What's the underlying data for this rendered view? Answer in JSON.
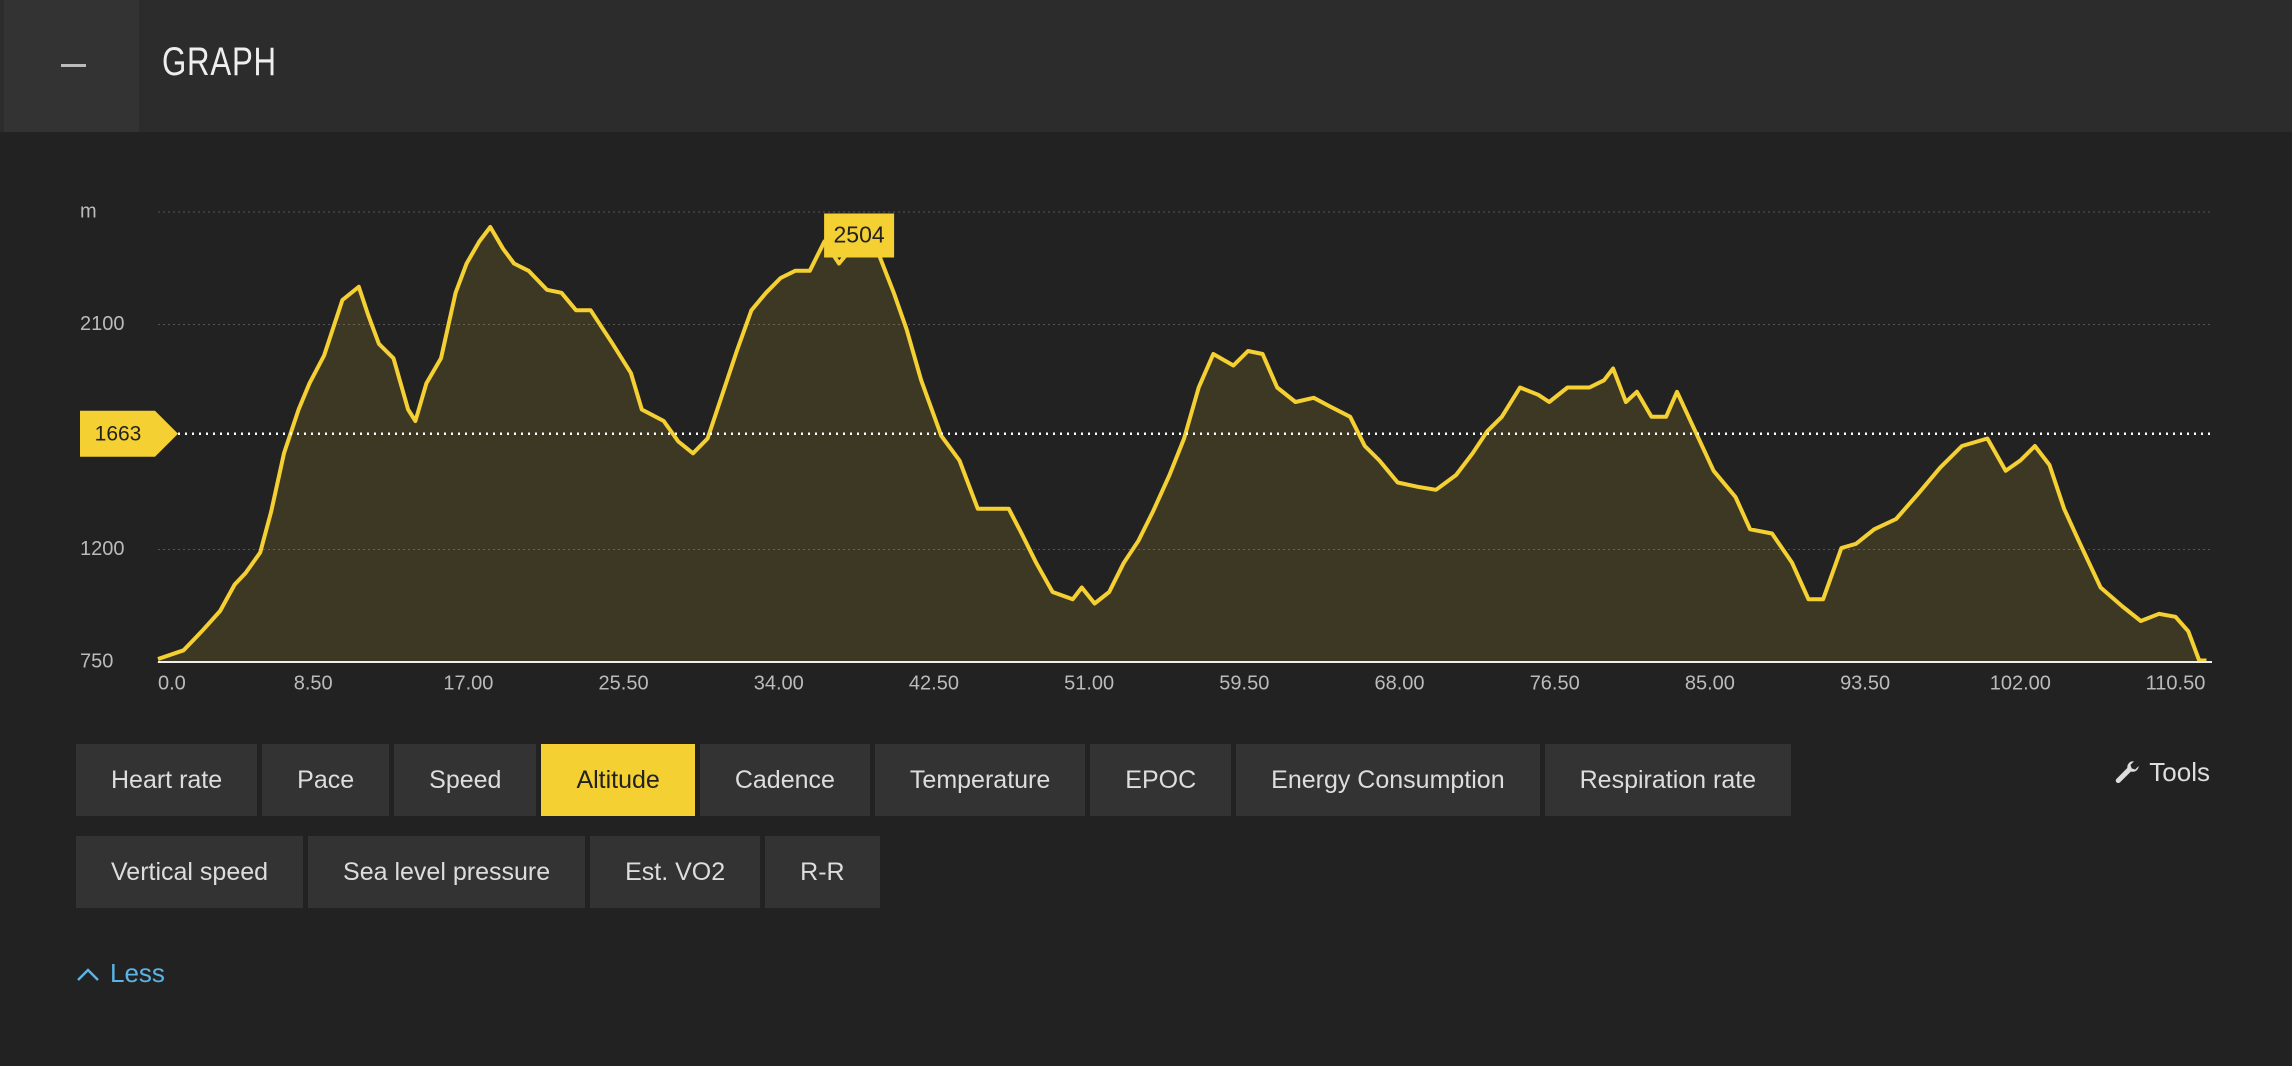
{
  "header": {
    "title": "GRAPH"
  },
  "chart_data": {
    "type": "line",
    "y_unit": "m",
    "color": "#f5d033",
    "x": [
      0,
      1.4,
      2.4,
      3.4,
      4.2,
      4.8,
      5.6,
      6.2,
      6.9,
      7.7,
      8.3,
      9.1,
      10.1,
      11.0,
      11.5,
      12.1,
      12.9,
      13.7,
      14.1,
      14.7,
      15.5,
      16.3,
      16.9,
      17.6,
      18.2,
      18.9,
      19.5,
      20.3,
      21.3,
      22.1,
      22.9,
      23.7,
      24.9,
      25.9,
      26.5,
      27.7,
      28.5,
      29.3,
      30.1,
      30.9,
      31.7,
      32.5,
      33.3,
      34.1,
      34.9,
      35.7,
      36.5,
      37.3,
      38.5,
      39.3,
      40.3,
      41.0,
      41.8,
      42.9,
      43.9,
      44.9,
      45.8,
      46.6,
      47.3,
      48.1,
      49.0,
      50.1,
      50.6,
      51.3,
      52.1,
      52.9,
      53.7,
      54.5,
      55.4,
      56.2,
      57.0,
      57.8,
      58.9,
      59.7,
      60.5,
      61.3,
      62.3,
      63.3,
      64.2,
      65.3,
      66.1,
      66.9,
      67.9,
      69.0,
      70.0,
      71.1,
      72.0,
      72.8,
      73.6,
      74.6,
      75.6,
      76.2,
      77.2,
      78.4,
      79.2,
      79.7,
      80.4,
      81.0,
      81.8,
      82.6,
      83.2,
      84.2,
      85.2,
      86.4,
      87.2,
      88.4,
      89.5,
      90.4,
      91.2,
      92.2,
      93.0,
      94.0,
      95.2,
      96.4,
      97.6,
      98.8,
      100.2,
      101.2,
      102.0,
      102.8,
      103.6,
      104.4,
      105.2,
      106.4,
      107.6,
      108.6,
      109.6,
      110.5,
      111.2,
      111.8,
      112.2
    ],
    "values": [
      762,
      797,
      873,
      954,
      1060,
      1106,
      1188,
      1352,
      1585,
      1760,
      1865,
      1976,
      2198,
      2251,
      2140,
      2023,
      1965,
      1760,
      1714,
      1865,
      1965,
      2227,
      2344,
      2432,
      2490,
      2403,
      2344,
      2315,
      2239,
      2227,
      2157,
      2157,
      2023,
      1906,
      1760,
      1714,
      1632,
      1585,
      1644,
      1819,
      1994,
      2157,
      2227,
      2286,
      2315,
      2315,
      2432,
      2344,
      2450,
      2414,
      2227,
      2081,
      1877,
      1655,
      1556,
      1363,
      1363,
      1363,
      1264,
      1147,
      1030,
      1001,
      1048,
      984,
      1030,
      1147,
      1235,
      1352,
      1498,
      1644,
      1848,
      1982,
      1936,
      1994,
      1982,
      1848,
      1790,
      1807,
      1772,
      1731,
      1614,
      1556,
      1468,
      1451,
      1439,
      1498,
      1585,
      1673,
      1731,
      1848,
      1819,
      1790,
      1848,
      1848,
      1877,
      1924,
      1790,
      1831,
      1731,
      1731,
      1831,
      1673,
      1515,
      1410,
      1281,
      1264,
      1147,
      1001,
      1001,
      1206,
      1223,
      1281,
      1322,
      1422,
      1527,
      1614,
      1644,
      1515,
      1556,
      1614,
      1538,
      1363,
      1235,
      1048,
      972,
      914,
      943,
      931,
      873,
      756,
      756
    ],
    "xlim": [
      0,
      112.5
    ],
    "ylim": [
      750,
      2550
    ],
    "yticks": [
      750,
      1200,
      2100
    ],
    "xticks": [
      {
        "value": 0,
        "label": "0.0"
      },
      {
        "value": 8.5,
        "label": "8.50"
      },
      {
        "value": 17,
        "label": "17.00"
      },
      {
        "value": 25.5,
        "label": "25.50"
      },
      {
        "value": 34,
        "label": "34.00"
      },
      {
        "value": 42.5,
        "label": "42.50"
      },
      {
        "value": 51,
        "label": "51.00"
      },
      {
        "value": 59.5,
        "label": "59.50"
      },
      {
        "value": 68,
        "label": "68.00"
      },
      {
        "value": 76.5,
        "label": "76.50"
      },
      {
        "value": 85,
        "label": "85.00"
      },
      {
        "value": 93.5,
        "label": "93.50"
      },
      {
        "value": 102,
        "label": "102.00"
      },
      {
        "value": 110.5,
        "label": "110.50"
      }
    ],
    "reference_line": 1663,
    "peak": {
      "x": 38.4,
      "value": 2504
    },
    "grid": true
  },
  "tabs": [
    [
      "Heart rate",
      "Pace",
      "Speed",
      "Altitude",
      "Cadence",
      "Temperature",
      "EPOC",
      "Energy Consumption",
      "Respiration rate"
    ],
    [
      "Vertical speed",
      "Sea level pressure",
      "Est. VO2",
      "R-R"
    ]
  ],
  "active_tab": "Altitude",
  "tools": "Tools",
  "less": "Less"
}
